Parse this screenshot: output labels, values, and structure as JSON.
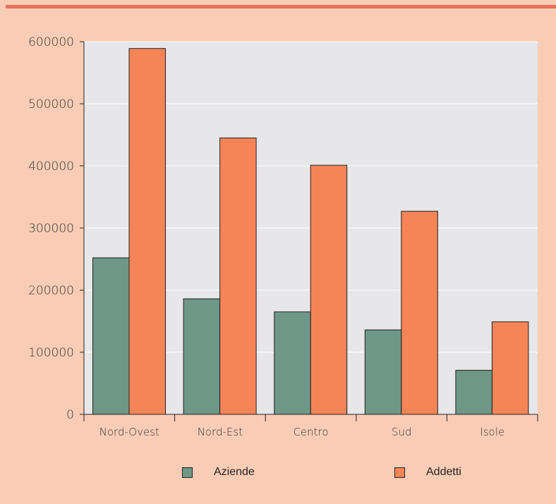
{
  "chart_data": {
    "type": "bar",
    "categories": [
      "Nord-Ovest",
      "Nord-Est",
      "Centro",
      "Sud",
      "Isole"
    ],
    "series": [
      {
        "name": "Aziende",
        "values": [
          252000,
          186000,
          165000,
          136000,
          71000
        ],
        "color": "#6e9788"
      },
      {
        "name": "Addetti",
        "values": [
          589000,
          445000,
          401000,
          327000,
          149000
        ],
        "color": "#f58457"
      }
    ],
    "ylim": [
      0,
      600000
    ],
    "yticks": [
      "0",
      "100000",
      "200000",
      "300000",
      "400000",
      "500000",
      "600000"
    ],
    "grid": true,
    "legend_placement": "bottom"
  }
}
